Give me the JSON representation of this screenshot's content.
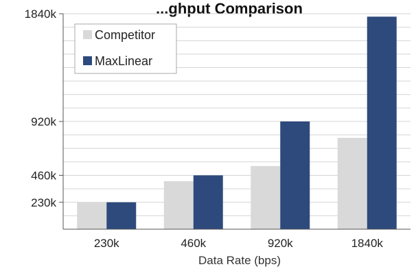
{
  "chart_data": {
    "type": "bar",
    "title": "...ghput Comparison",
    "xlabel": "Data Rate (bps)",
    "ylabel": "",
    "categories": [
      "230k",
      "460k",
      "920k",
      "1840k"
    ],
    "y_tick_values": [
      230,
      460,
      920,
      1840
    ],
    "y_tick_labels": [
      "230k",
      "460k",
      "920k",
      "1840k"
    ],
    "ylim": [
      0,
      1840
    ],
    "series": [
      {
        "name": "Competitor",
        "values": [
          230,
          410,
          540,
          780
        ],
        "color": "#d9d9d9"
      },
      {
        "name": "MaxLinear",
        "values": [
          230,
          460,
          920,
          1815
        ],
        "color": "#2e4a7d"
      }
    ],
    "grid": true,
    "legend_position": "top-left"
  }
}
